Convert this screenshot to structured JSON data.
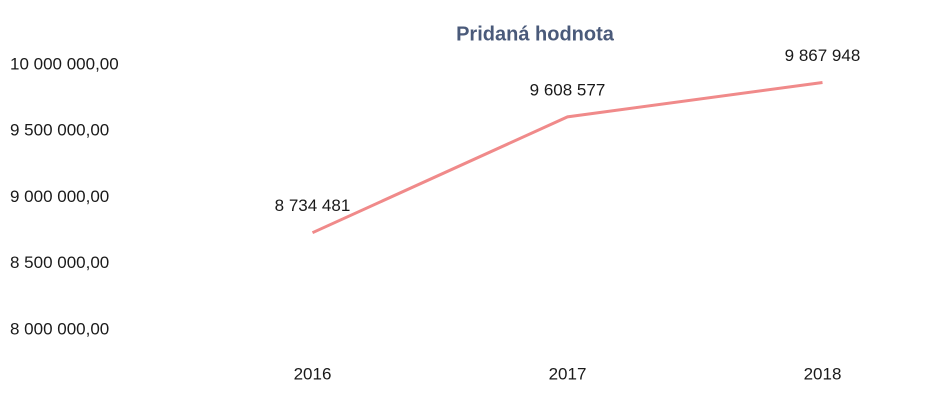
{
  "chart_data": {
    "type": "line",
    "title": "Pridaná hodnota",
    "categories": [
      "2016",
      "2017",
      "2018"
    ],
    "series": [
      {
        "name": "Pridaná hodnota",
        "color": "#f08a8a",
        "values": [
          8734481,
          9608577,
          9867948
        ],
        "value_labels": [
          "8 734 481",
          "9 608 577",
          "9 867 948"
        ]
      }
    ],
    "ylim": [
      8000000,
      10000000
    ],
    "yticks": [
      {
        "value": 8000000,
        "label": "8 000 000,00"
      },
      {
        "value": 8500000,
        "label": "8 500 000,00"
      },
      {
        "value": 9000000,
        "label": "9 000 000,00"
      },
      {
        "value": 9500000,
        "label": "9 500 000,00"
      },
      {
        "value": 10000000,
        "label": "10 000 000,00"
      }
    ],
    "grid": false
  }
}
